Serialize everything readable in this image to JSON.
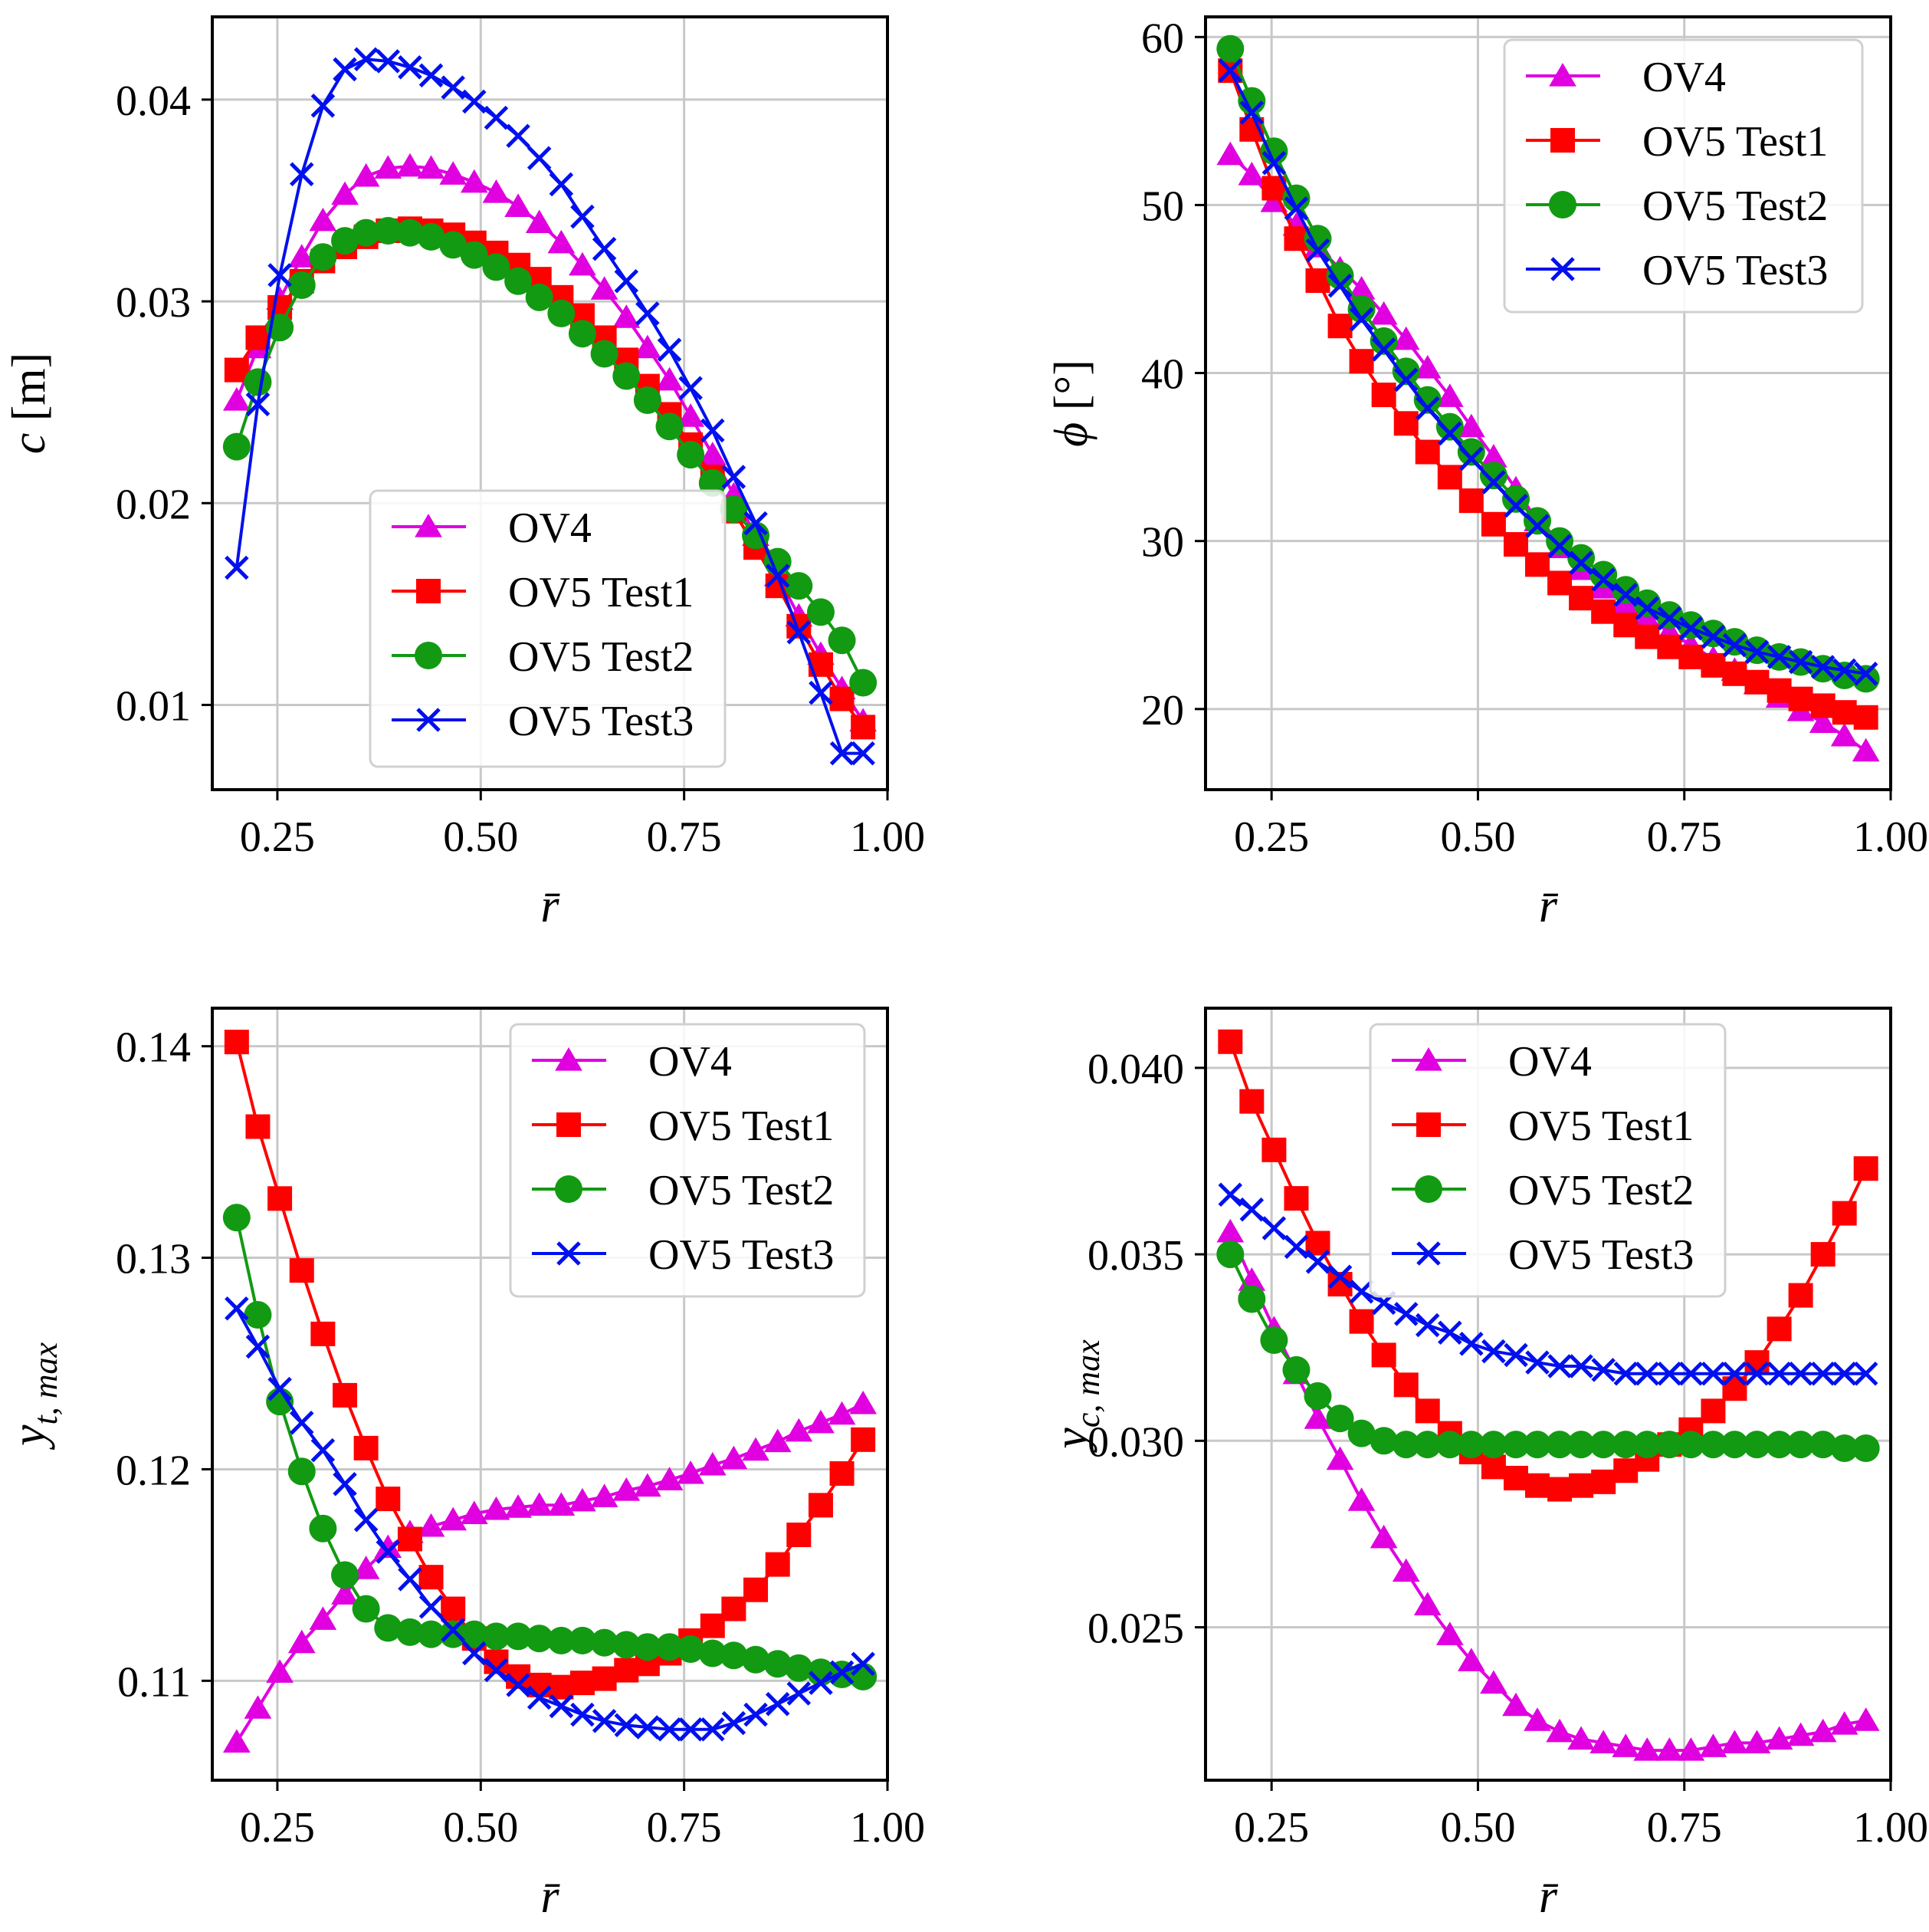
{
  "legend": {
    "series": [
      {
        "name": "OV4",
        "color": "#e000e0",
        "marker": "triangle"
      },
      {
        "name": "OV5 Test1",
        "color": "#ff0000",
        "marker": "square"
      },
      {
        "name": "OV5 Test2",
        "color": "#129a12",
        "marker": "circle"
      },
      {
        "name": "OV5 Test3",
        "color": "#0010ee",
        "marker": "x"
      }
    ]
  },
  "chart_data": [
    {
      "type": "line",
      "xlabel": "r̄",
      "ylabel": "c [m]",
      "grid": true,
      "xlim": [
        0.17,
        1.0
      ],
      "ylim": [
        0.0058,
        0.0441
      ],
      "xticks": [
        0.25,
        0.5,
        0.75,
        1.0
      ],
      "xtick_labels": [
        "0.25",
        "0.50",
        "0.75",
        "1.00"
      ],
      "yticks": [
        0.01,
        0.02,
        0.03,
        0.04
      ],
      "ytick_labels": [
        "0.01",
        "0.02",
        "0.03",
        "0.04"
      ],
      "legend_loc": "lower-center",
      "x": [
        0.2,
        0.226,
        0.253,
        0.28,
        0.306,
        0.333,
        0.359,
        0.386,
        0.413,
        0.439,
        0.466,
        0.492,
        0.519,
        0.546,
        0.572,
        0.599,
        0.625,
        0.652,
        0.679,
        0.705,
        0.732,
        0.758,
        0.785,
        0.811,
        0.838,
        0.865,
        0.891,
        0.918,
        0.944,
        0.97
      ],
      "series": [
        {
          "name": "OV4",
          "values": [
            0.0251,
            0.0277,
            0.0301,
            0.0322,
            0.034,
            0.0353,
            0.0362,
            0.0366,
            0.0367,
            0.0366,
            0.0363,
            0.0359,
            0.0354,
            0.0347,
            0.0339,
            0.0329,
            0.0318,
            0.0306,
            0.0292,
            0.0277,
            0.0261,
            0.0243,
            0.0224,
            0.0204,
            0.0184,
            0.0164,
            0.0144,
            0.0125,
            0.0108,
            0.0092
          ]
        },
        {
          "name": "OV5 Test1",
          "values": [
            0.0266,
            0.0282,
            0.0297,
            0.031,
            0.032,
            0.0327,
            0.0332,
            0.0335,
            0.0336,
            0.0335,
            0.0333,
            0.0329,
            0.0324,
            0.0318,
            0.0311,
            0.0302,
            0.0293,
            0.0282,
            0.0271,
            0.0258,
            0.0244,
            0.0229,
            0.0213,
            0.0196,
            0.0178,
            0.0159,
            0.0139,
            0.012,
            0.0103,
            0.0089
          ]
        },
        {
          "name": "OV5 Test2",
          "values": [
            0.0228,
            0.026,
            0.0287,
            0.0308,
            0.0322,
            0.033,
            0.0334,
            0.0335,
            0.0334,
            0.0332,
            0.0328,
            0.0323,
            0.0317,
            0.031,
            0.0302,
            0.0294,
            0.0284,
            0.0274,
            0.0263,
            0.0251,
            0.0238,
            0.0224,
            0.021,
            0.0197,
            0.0184,
            0.0171,
            0.0159,
            0.0146,
            0.0132,
            0.0111
          ]
        },
        {
          "name": "OV5 Test3",
          "values": [
            0.0168,
            0.0249,
            0.0313,
            0.0363,
            0.0397,
            0.0415,
            0.042,
            0.0419,
            0.0416,
            0.0412,
            0.0406,
            0.0399,
            0.0391,
            0.0382,
            0.0371,
            0.0358,
            0.0342,
            0.0326,
            0.031,
            0.0294,
            0.0276,
            0.0257,
            0.0236,
            0.0213,
            0.019,
            0.0164,
            0.0136,
            0.0106,
            0.0076,
            0.0076
          ]
        }
      ]
    },
    {
      "type": "line",
      "xlabel": "r̄",
      "ylabel": "ϕ [°]",
      "grid": true,
      "xlim": [
        0.17,
        1.0
      ],
      "ylim": [
        15.2,
        61.2
      ],
      "xticks": [
        0.25,
        0.5,
        0.75,
        1.0
      ],
      "xtick_labels": [
        "0.25",
        "0.50",
        "0.75",
        "1.00"
      ],
      "yticks": [
        20,
        30,
        40,
        50,
        60
      ],
      "ytick_labels": [
        "20",
        "30",
        "40",
        "50",
        "60"
      ],
      "legend_loc": "upper-right",
      "x": [
        0.2,
        0.226,
        0.253,
        0.28,
        0.306,
        0.333,
        0.359,
        0.386,
        0.413,
        0.439,
        0.466,
        0.492,
        0.519,
        0.546,
        0.572,
        0.599,
        0.625,
        0.652,
        0.679,
        0.705,
        0.732,
        0.758,
        0.785,
        0.811,
        0.838,
        0.865,
        0.891,
        0.918,
        0.944,
        0.97
      ],
      "series": [
        {
          "name": "OV4",
          "values": [
            53.0,
            51.8,
            50.2,
            48.8,
            47.5,
            46.2,
            45.0,
            43.5,
            42.0,
            40.3,
            38.6,
            36.8,
            35.0,
            33.1,
            31.2,
            29.6,
            28.3,
            27.2,
            26.3,
            25.4,
            24.6,
            23.8,
            23.0,
            22.3,
            21.5,
            20.7,
            19.9,
            19.2,
            18.4,
            17.5
          ]
        },
        {
          "name": "OV5 Test1",
          "values": [
            58.0,
            54.5,
            51.0,
            48.0,
            45.5,
            42.8,
            40.7,
            38.7,
            37.0,
            35.3,
            33.8,
            32.4,
            31.0,
            29.8,
            28.6,
            27.5,
            26.6,
            25.8,
            25.0,
            24.3,
            23.7,
            23.1,
            22.6,
            22.1,
            21.6,
            21.1,
            20.6,
            20.2,
            19.8,
            19.5
          ]
        },
        {
          "name": "OV5 Test2",
          "values": [
            59.3,
            56.2,
            53.2,
            50.4,
            48.0,
            45.8,
            43.8,
            41.9,
            40.1,
            38.4,
            36.8,
            35.3,
            33.9,
            32.5,
            31.2,
            30.0,
            29.0,
            28.0,
            27.1,
            26.3,
            25.6,
            25.0,
            24.5,
            24.0,
            23.5,
            23.1,
            22.8,
            22.4,
            22.0,
            21.8
          ]
        },
        {
          "name": "OV5 Test3",
          "values": [
            58.0,
            55.5,
            52.5,
            49.8,
            47.3,
            45.2,
            43.2,
            41.4,
            39.6,
            37.9,
            36.4,
            34.9,
            33.5,
            32.1,
            30.9,
            29.7,
            28.7,
            27.7,
            26.8,
            26.0,
            25.4,
            24.8,
            24.3,
            23.8,
            23.4,
            23.1,
            22.8,
            22.5,
            22.3,
            22.1
          ]
        }
      ]
    },
    {
      "type": "line",
      "xlabel": "r̄",
      "ylabel": "y_t,max",
      "grid": true,
      "xlim": [
        0.17,
        1.0
      ],
      "ylim": [
        0.1053,
        0.1418
      ],
      "xticks": [
        0.25,
        0.5,
        0.75,
        1.0
      ],
      "xtick_labels": [
        "0.25",
        "0.50",
        "0.75",
        "1.00"
      ],
      "yticks": [
        0.11,
        0.12,
        0.13,
        0.14
      ],
      "ytick_labels": [
        "0.11",
        "0.12",
        "0.13",
        "0.14"
      ],
      "legend_loc": "upper-right",
      "x": [
        0.2,
        0.226,
        0.253,
        0.28,
        0.306,
        0.333,
        0.359,
        0.386,
        0.413,
        0.439,
        0.466,
        0.492,
        0.519,
        0.546,
        0.572,
        0.599,
        0.625,
        0.652,
        0.679,
        0.705,
        0.732,
        0.758,
        0.785,
        0.811,
        0.838,
        0.865,
        0.891,
        0.918,
        0.944,
        0.97
      ],
      "series": [
        {
          "name": "OV4",
          "values": [
            0.1071,
            0.1087,
            0.1104,
            0.1118,
            0.1129,
            0.1141,
            0.1153,
            0.1163,
            0.117,
            0.1173,
            0.1176,
            0.1179,
            0.1181,
            0.1182,
            0.1183,
            0.1183,
            0.1185,
            0.1187,
            0.119,
            0.1192,
            0.1195,
            0.1198,
            0.1202,
            0.1205,
            0.1209,
            0.1213,
            0.1218,
            0.1222,
            0.1226,
            0.1231
          ]
        },
        {
          "name": "OV5 Test1",
          "values": [
            0.1402,
            0.1362,
            0.1328,
            0.1294,
            0.1264,
            0.1235,
            0.121,
            0.1186,
            0.1167,
            0.1149,
            0.1134,
            0.112,
            0.1109,
            0.1102,
            0.1098,
            0.1097,
            0.1099,
            0.1101,
            0.1105,
            0.1108,
            0.1113,
            0.1119,
            0.1126,
            0.1134,
            0.1143,
            0.1155,
            0.1169,
            0.1183,
            0.1198,
            0.1214
          ]
        },
        {
          "name": "OV5 Test2",
          "values": [
            0.1319,
            0.1273,
            0.1232,
            0.1199,
            0.1172,
            0.115,
            0.1134,
            0.1125,
            0.1123,
            0.1122,
            0.1122,
            0.1122,
            0.1121,
            0.1121,
            0.112,
            0.1119,
            0.1119,
            0.1118,
            0.1117,
            0.1116,
            0.1116,
            0.1115,
            0.1113,
            0.1112,
            0.111,
            0.1108,
            0.1106,
            0.1104,
            0.1103,
            0.1102
          ]
        },
        {
          "name": "OV5 Test3",
          "values": [
            0.1276,
            0.1258,
            0.1238,
            0.1222,
            0.1209,
            0.1193,
            0.1176,
            0.1161,
            0.1148,
            0.1135,
            0.1124,
            0.1113,
            0.1105,
            0.1098,
            0.1092,
            0.1088,
            0.1084,
            0.1081,
            0.1079,
            0.1078,
            0.1077,
            0.1077,
            0.1077,
            0.108,
            0.1084,
            0.1089,
            0.1094,
            0.1099,
            0.1104,
            0.1108
          ]
        }
      ]
    },
    {
      "type": "line",
      "xlabel": "r̄",
      "ylabel": "y_c,max",
      "grid": true,
      "xlim": [
        0.17,
        1.0
      ],
      "ylim": [
        0.0209,
        0.0416
      ],
      "xticks": [
        0.25,
        0.5,
        0.75,
        1.0
      ],
      "xtick_labels": [
        "0.25",
        "0.50",
        "0.75",
        "1.00"
      ],
      "yticks": [
        0.025,
        0.03,
        0.035,
        0.04
      ],
      "ytick_labels": [
        "0.025",
        "0.030",
        "0.035",
        "0.040"
      ],
      "legend_loc": "upper-right",
      "x": [
        0.2,
        0.226,
        0.253,
        0.28,
        0.306,
        0.333,
        0.359,
        0.386,
        0.413,
        0.439,
        0.466,
        0.492,
        0.519,
        0.546,
        0.572,
        0.599,
        0.625,
        0.652,
        0.679,
        0.705,
        0.732,
        0.758,
        0.785,
        0.811,
        0.838,
        0.865,
        0.891,
        0.918,
        0.944,
        0.97
      ],
      "series": [
        {
          "name": "OV4",
          "values": [
            0.0356,
            0.0343,
            0.033,
            0.0318,
            0.0306,
            0.0295,
            0.0284,
            0.0274,
            0.0265,
            0.0256,
            0.0248,
            0.0241,
            0.0235,
            0.0229,
            0.0225,
            0.0222,
            0.022,
            0.0219,
            0.0218,
            0.0217,
            0.0217,
            0.0217,
            0.0218,
            0.0219,
            0.0219,
            0.022,
            0.0221,
            0.0222,
            0.0224,
            0.0225
          ]
        },
        {
          "name": "OV5 Test1",
          "values": [
            0.0407,
            0.0391,
            0.0378,
            0.0365,
            0.0353,
            0.0342,
            0.0332,
            0.0323,
            0.0315,
            0.0308,
            0.0302,
            0.0297,
            0.0293,
            0.029,
            0.0288,
            0.0287,
            0.0288,
            0.0289,
            0.0292,
            0.0295,
            0.0299,
            0.0303,
            0.0308,
            0.0314,
            0.0321,
            0.033,
            0.0339,
            0.035,
            0.0361,
            0.0373
          ]
        },
        {
          "name": "OV5 Test2",
          "values": [
            0.035,
            0.0338,
            0.0327,
            0.0319,
            0.0312,
            0.0306,
            0.0302,
            0.03,
            0.0299,
            0.0299,
            0.0299,
            0.0299,
            0.0299,
            0.0299,
            0.0299,
            0.0299,
            0.0299,
            0.0299,
            0.0299,
            0.0299,
            0.0299,
            0.0299,
            0.0299,
            0.0299,
            0.0299,
            0.0299,
            0.0299,
            0.0299,
            0.0298,
            0.0298
          ]
        },
        {
          "name": "OV5 Test3",
          "values": [
            0.0366,
            0.0362,
            0.0357,
            0.0352,
            0.0348,
            0.0344,
            0.034,
            0.0337,
            0.0334,
            0.0331,
            0.0329,
            0.0326,
            0.0324,
            0.0323,
            0.0321,
            0.032,
            0.032,
            0.0319,
            0.0318,
            0.0318,
            0.0318,
            0.0318,
            0.0318,
            0.0318,
            0.0318,
            0.0318,
            0.0318,
            0.0318,
            0.0318,
            0.0318
          ]
        }
      ]
    }
  ]
}
